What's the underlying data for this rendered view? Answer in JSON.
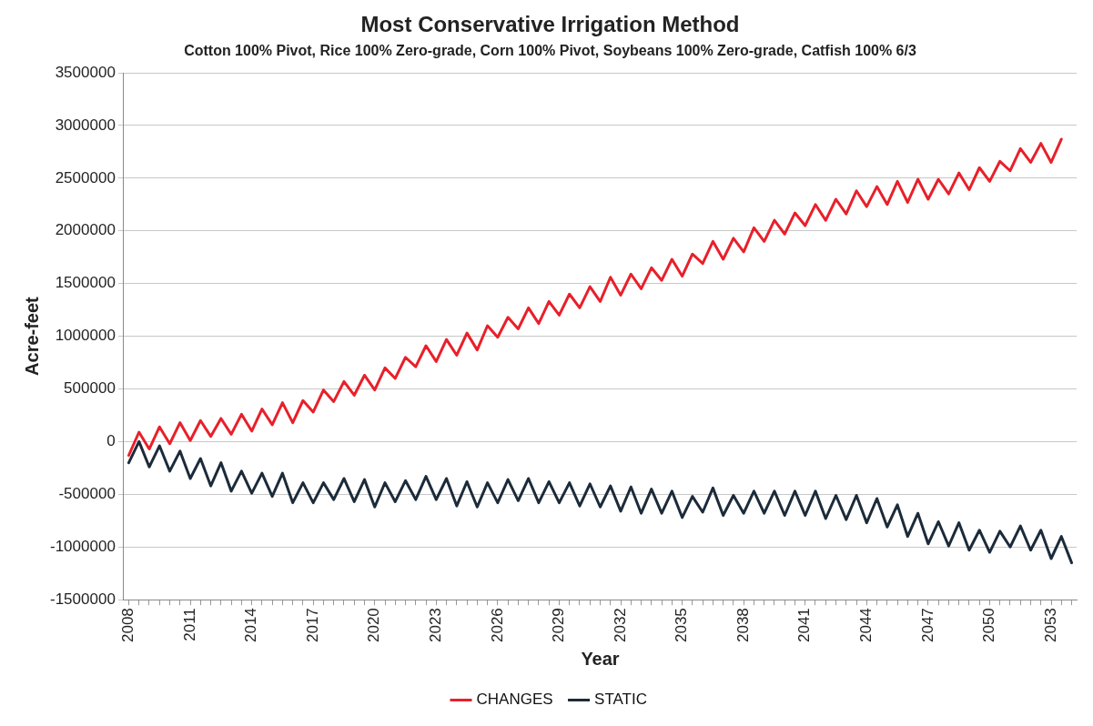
{
  "chart_data": {
    "type": "line",
    "title": "Most Conservative Irrigation Method",
    "subtitle": "Cotton 100% Pivot, Rice 100% Zero-grade, Corn 100% Pivot, Soybeans 100% Zero-grade, Catfish 100% 6/3",
    "xlabel": "Year",
    "ylabel": "Acre-feet",
    "categories": [
      "2008",
      null,
      null,
      null,
      null,
      null,
      "2011",
      null,
      null,
      null,
      null,
      null,
      "2014",
      null,
      null,
      null,
      null,
      null,
      "2017",
      null,
      null,
      null,
      null,
      null,
      "2020",
      null,
      null,
      null,
      null,
      null,
      "2023",
      null,
      null,
      null,
      null,
      null,
      "2026",
      null,
      null,
      null,
      null,
      null,
      "2029",
      null,
      null,
      null,
      null,
      null,
      "2032",
      null,
      null,
      null,
      null,
      null,
      "2035",
      null,
      null,
      null,
      null,
      null,
      "2038",
      null,
      null,
      null,
      null,
      null,
      "2041",
      null,
      null,
      null,
      null,
      null,
      "2044",
      null,
      null,
      null,
      null,
      null,
      "2047",
      null,
      null,
      null,
      null,
      null,
      "2050",
      null,
      null,
      null,
      null,
      null,
      "2053",
      null,
      null
    ],
    "series": [
      {
        "name": "CHANGES",
        "color": "#e8202a",
        "values": [
          -130000,
          90000,
          -70000,
          140000,
          -20000,
          180000,
          10000,
          200000,
          50000,
          220000,
          70000,
          260000,
          100000,
          310000,
          160000,
          370000,
          180000,
          390000,
          280000,
          490000,
          380000,
          570000,
          440000,
          630000,
          490000,
          700000,
          600000,
          800000,
          710000,
          910000,
          760000,
          970000,
          820000,
          1030000,
          870000,
          1100000,
          990000,
          1180000,
          1070000,
          1270000,
          1120000,
          1330000,
          1200000,
          1400000,
          1270000,
          1470000,
          1330000,
          1560000,
          1390000,
          1590000,
          1450000,
          1650000,
          1530000,
          1730000,
          1570000,
          1780000,
          1690000,
          1900000,
          1730000,
          1930000,
          1800000,
          2030000,
          1900000,
          2100000,
          1970000,
          2170000,
          2050000,
          2250000,
          2100000,
          2300000,
          2160000,
          2380000,
          2230000,
          2420000,
          2250000,
          2470000,
          2270000,
          2490000,
          2300000,
          2490000,
          2350000,
          2550000,
          2390000,
          2600000,
          2470000,
          2660000,
          2570000,
          2780000,
          2650000,
          2830000,
          2650000,
          2870000,
          null
        ]
      },
      {
        "name": "STATIC",
        "color": "#1c2b3a",
        "values": [
          -200000,
          0,
          -240000,
          -40000,
          -280000,
          -90000,
          -350000,
          -160000,
          -420000,
          -200000,
          -470000,
          -280000,
          -490000,
          -300000,
          -520000,
          -300000,
          -580000,
          -390000,
          -580000,
          -390000,
          -550000,
          -350000,
          -570000,
          -360000,
          -620000,
          -390000,
          -570000,
          -370000,
          -550000,
          -330000,
          -550000,
          -350000,
          -610000,
          -380000,
          -620000,
          -390000,
          -580000,
          -360000,
          -560000,
          -350000,
          -580000,
          -380000,
          -580000,
          -390000,
          -610000,
          -400000,
          -620000,
          -420000,
          -660000,
          -430000,
          -680000,
          -450000,
          -680000,
          -470000,
          -720000,
          -520000,
          -670000,
          -440000,
          -700000,
          -510000,
          -680000,
          -470000,
          -680000,
          -470000,
          -700000,
          -470000,
          -700000,
          -470000,
          -730000,
          -510000,
          -740000,
          -510000,
          -770000,
          -540000,
          -810000,
          -600000,
          -900000,
          -680000,
          -970000,
          -760000,
          -990000,
          -770000,
          -1030000,
          -840000,
          -1050000,
          -850000,
          -1000000,
          -800000,
          -1030000,
          -840000,
          -1110000,
          -900000,
          -1150000
        ]
      }
    ],
    "ylim": [
      -1500000,
      3500000
    ],
    "yticks": [
      -1500000,
      -1000000,
      -500000,
      0,
      500000,
      1000000,
      1500000,
      2000000,
      2500000,
      3000000,
      3500000
    ],
    "grid": "y",
    "legend": "bottom",
    "marker": "none",
    "line_style": "solid"
  }
}
